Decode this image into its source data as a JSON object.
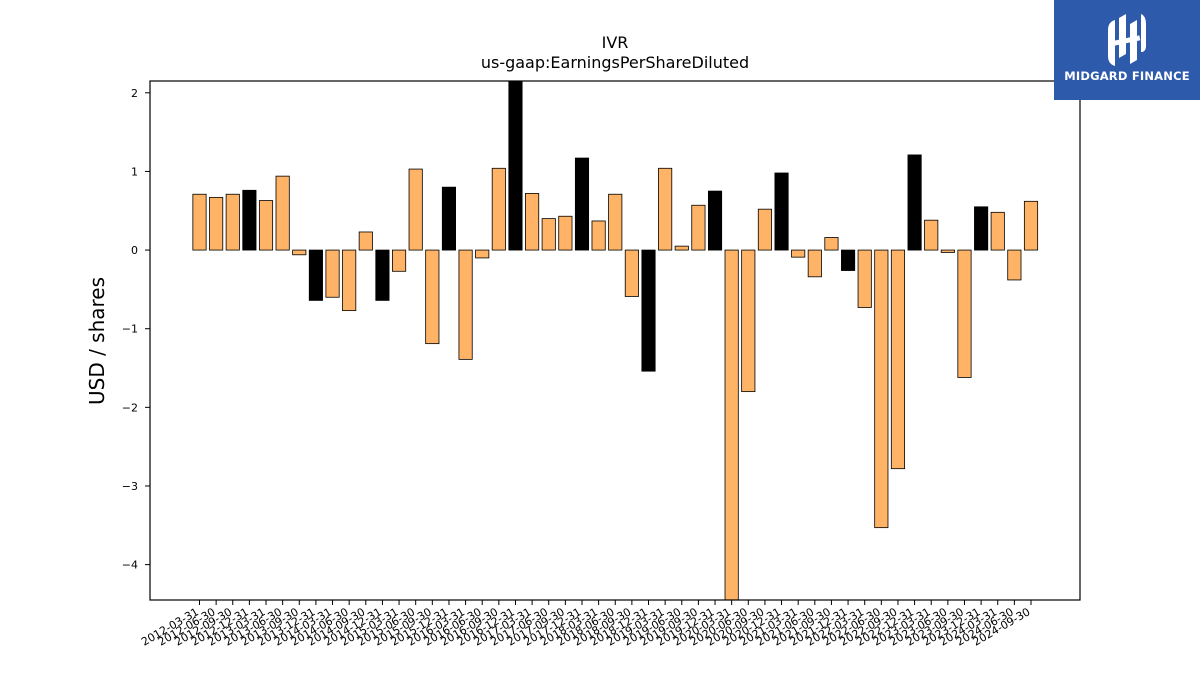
{
  "brand": {
    "name": "MIDGARD FINANCE",
    "bg_color": "#2e5aac"
  },
  "chart_data": {
    "type": "bar",
    "title": "IVR",
    "subtitle": "us-gaap:EarningsPerShareDiluted",
    "ylabel": "USD / shares",
    "xlabel": "",
    "ylim": [
      -4.45,
      2.15
    ],
    "yticks": [
      2,
      1,
      0,
      -1,
      -2,
      -3,
      -4
    ],
    "grid": false,
    "colors": {
      "orange": "#ffb366",
      "black": "#000000",
      "edge": "#000000"
    },
    "categories": [
      "2012-03-31",
      "2012-06-30",
      "2012-09-30",
      "2012-12-31",
      "2013-03-31",
      "2013-06-30",
      "2013-09-30",
      "2013-12-31",
      "2014-03-31",
      "2014-06-30",
      "2014-09-30",
      "2014-12-31",
      "2015-03-31",
      "2015-06-30",
      "2015-09-30",
      "2015-12-31",
      "2016-03-31",
      "2016-06-30",
      "2016-09-30",
      "2016-12-31",
      "2017-03-31",
      "2017-06-30",
      "2017-09-30",
      "2017-12-31",
      "2018-03-31",
      "2018-06-30",
      "2018-09-30",
      "2018-12-31",
      "2019-03-31",
      "2019-06-30",
      "2019-09-30",
      "2019-12-31",
      "2020-03-31",
      "2020-06-30",
      "2020-09-30",
      "2020-12-31",
      "2021-03-31",
      "2021-06-30",
      "2021-09-30",
      "2021-12-31",
      "2022-03-31",
      "2022-06-30",
      "2022-09-30",
      "2022-12-31",
      "2023-03-31",
      "2023-06-30",
      "2023-09-30",
      "2023-12-31",
      "2024-03-31",
      "2024-06-30",
      "2024-09-30"
    ],
    "tick_labels": [
      "2012-03-31",
      "2012-06-30",
      "2012-09-30",
      "2012-12-31",
      "2013-03-31",
      "2013-06-30",
      "2013-09-30",
      "2013-12-31",
      "2014-03-31",
      "2014-06-30",
      "2014-09-30",
      "2014-12-31",
      "2015-03-31",
      "2015-06-30",
      "2015-09-30",
      "2015-12-31",
      "2016-03-31",
      "2016-06-30",
      "2016-09-30",
      "2016-12-31",
      "2017-03-31",
      "2017-06-30",
      "2017-09-30",
      "2017-12-31",
      "2018-03-31",
      "2018-06-30",
      "2018-09-30",
      "2018-12-31",
      "2019-03-31",
      "2019-06-30",
      "2019-09-30",
      "2019-12-31",
      "2020-03-31",
      "2020-06-30",
      "2020-09-30",
      "2020-12-31",
      "2021-03-31",
      "2021-06-30",
      "2021-09-30",
      "2021-12-31",
      "2022-03-31",
      "2022-06-30",
      "2022-09-30",
      "2022-12-31",
      "2023-03-31",
      "2023-06-30",
      "2023-09-30",
      "2023-12-31",
      "2024-03-31",
      "2024-06-30",
      "2024-09-30"
    ],
    "values": [
      0.71,
      0.67,
      0.71,
      0.76,
      0.63,
      0.94,
      -0.06,
      -0.64,
      -0.6,
      -0.77,
      0.23,
      -0.64,
      -0.27,
      1.03,
      -1.19,
      0.8,
      -1.39,
      -0.1,
      1.04,
      2.2,
      0.72,
      0.4,
      0.43,
      1.17,
      0.37,
      0.71,
      -0.59,
      -1.54,
      1.04,
      0.05,
      0.57,
      0.75,
      -4.5,
      -1.8,
      0.52,
      0.98,
      -0.09,
      -0.34,
      0.16,
      -0.26,
      -0.73,
      -3.53,
      -2.78,
      1.21,
      0.38,
      -0.03,
      -1.62,
      0.55,
      0.48,
      -0.38,
      0.62
    ],
    "bar_colors": [
      "orange",
      "orange",
      "orange",
      "black",
      "orange",
      "orange",
      "orange",
      "black",
      "orange",
      "orange",
      "orange",
      "black",
      "orange",
      "orange",
      "orange",
      "black",
      "orange",
      "orange",
      "orange",
      "black",
      "orange",
      "orange",
      "orange",
      "black",
      "orange",
      "orange",
      "orange",
      "black",
      "orange",
      "orange",
      "orange",
      "black",
      "orange",
      "orange",
      "orange",
      "black",
      "orange",
      "orange",
      "orange",
      "black",
      "orange",
      "orange",
      "orange",
      "black",
      "orange",
      "orange",
      "orange",
      "black",
      "orange",
      "orange",
      "orange"
    ]
  }
}
